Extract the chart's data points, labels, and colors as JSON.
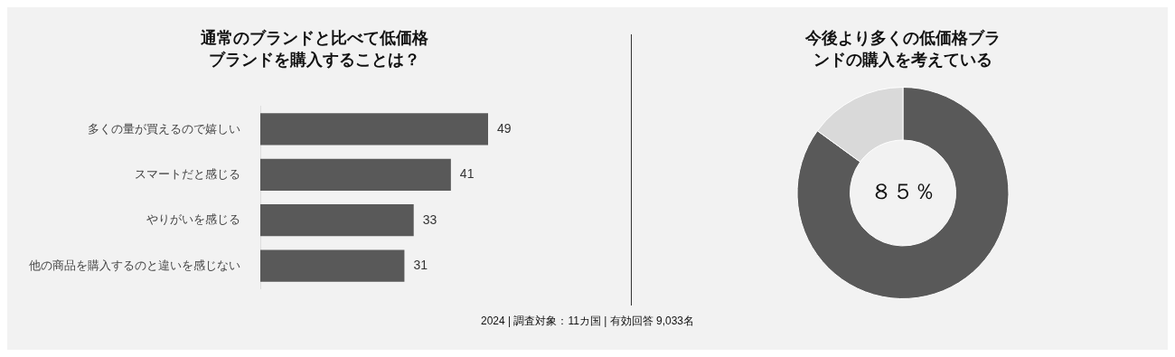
{
  "chart_data": [
    {
      "type": "bar",
      "orientation": "horizontal",
      "title": "通常のブランドと比べて低価格ブランドを購入することは？",
      "categories": [
        "多くの量が買えるので嬉しい",
        "スマートだと感じる",
        "やりがいを感じる",
        "他の商品を購入するのと違いを感じない"
      ],
      "values": [
        49,
        41,
        33,
        31
      ],
      "color": "#595959",
      "data_labels": true,
      "legend": false
    },
    {
      "type": "donut",
      "title": "今後より多くの低価格ブランドの購入を考えている",
      "categories": [
        null,
        null
      ],
      "values": [
        85,
        15
      ],
      "colors": [
        "#595959",
        "#d9d9d9"
      ],
      "legend": false,
      "annotations": [
        "８５％",
        "2024 | 調査対象：11カ国 | 有効回答 9,033名"
      ]
    }
  ]
}
